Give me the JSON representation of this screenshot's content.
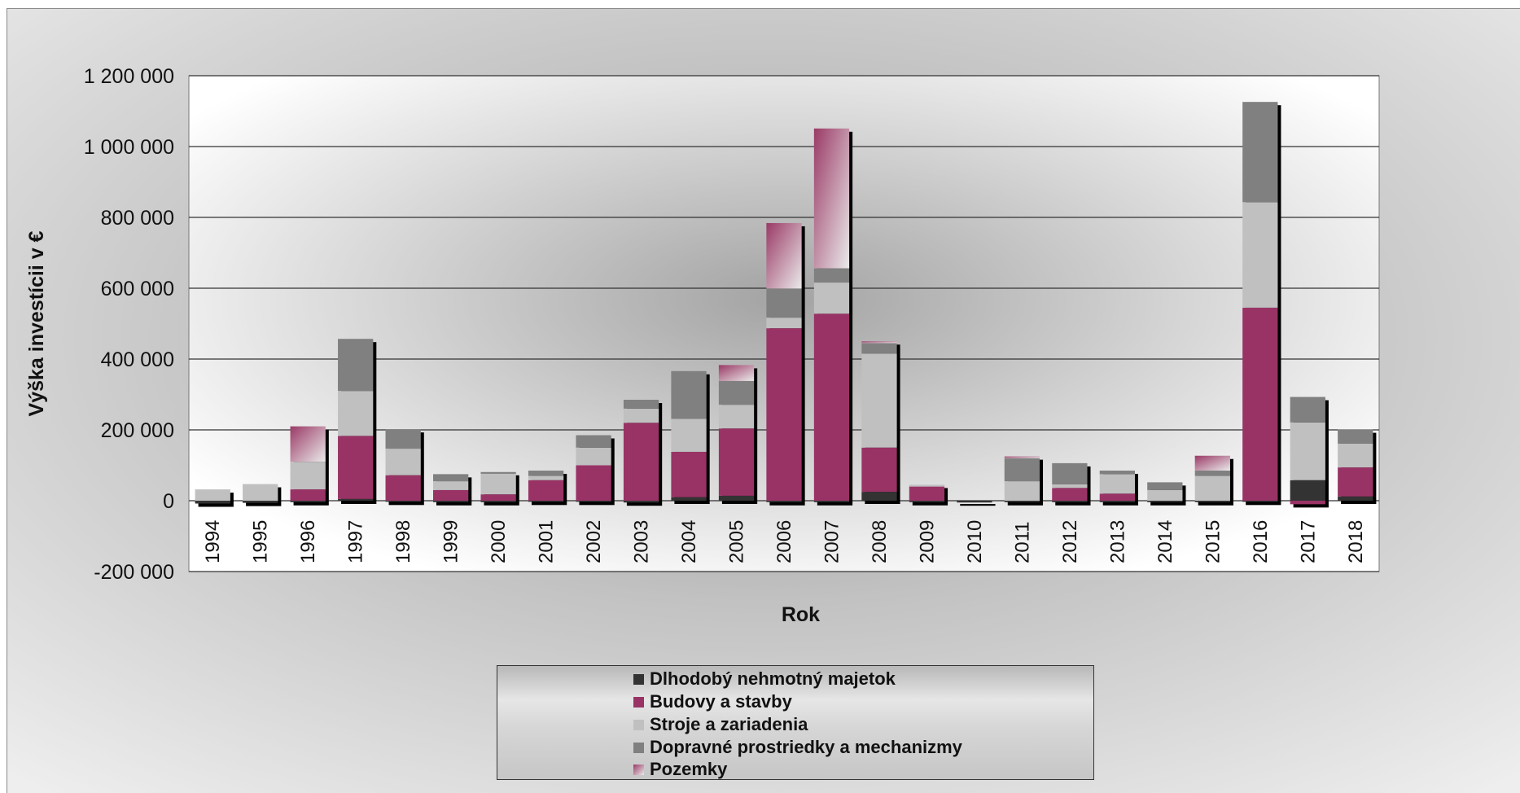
{
  "chart_data": {
    "type": "bar",
    "stacked": true,
    "title": "",
    "xlabel": "Rok",
    "ylabel": "Výška investícii v €",
    "ylim": [
      -200000,
      1200000
    ],
    "yticks": [
      -200000,
      0,
      200000,
      400000,
      600000,
      800000,
      1000000,
      1200000
    ],
    "ytick_labels": [
      "-200 000",
      "0",
      "200 000",
      "400 000",
      "600 000",
      "800 000",
      "1 000 000",
      "1 200 000"
    ],
    "grid": true,
    "legend_position": "bottom",
    "categories": [
      "1994",
      "1995",
      "1996",
      "1997",
      "1998",
      "1999",
      "2000",
      "2001",
      "2002",
      "2003",
      "2004",
      "2005",
      "2006",
      "2007",
      "2008",
      "2009",
      "2010",
      "2011",
      "2012",
      "2013",
      "2014",
      "2015",
      "2016",
      "2017",
      "2018"
    ],
    "series": [
      {
        "name": "Dlhodobý nehmotný majetok",
        "color": "#333333",
        "values": [
          -8000,
          -6000,
          -4000,
          5000,
          -3000,
          -4000,
          -4000,
          -3000,
          -3000,
          -5000,
          10000,
          14000,
          -4000,
          -4000,
          25000,
          -4000,
          -5000,
          -4000,
          -4000,
          -4000,
          -4000,
          -4000,
          -3000,
          58000,
          12000
        ]
      },
      {
        "name": "Budovy a stavby",
        "color": "#993366",
        "values": [
          0,
          0,
          32000,
          178000,
          72000,
          30000,
          18000,
          58000,
          100000,
          220000,
          128000,
          190000,
          487000,
          528000,
          125000,
          40000,
          0,
          0,
          36000,
          20000,
          0,
          0,
          545000,
          -10000,
          82000
        ]
      },
      {
        "name": "Stroje a zariadenia",
        "color": "#c0c0c0",
        "values": [
          32000,
          47000,
          78000,
          127000,
          75000,
          25000,
          58000,
          12000,
          50000,
          40000,
          93000,
          67000,
          30000,
          88000,
          265000,
          5000,
          0,
          55000,
          10000,
          55000,
          30000,
          70000,
          298000,
          163000,
          67000
        ]
      },
      {
        "name": "Dopravné prostriedky a mechanizmy",
        "color": "#808080",
        "values": [
          0,
          0,
          0,
          147000,
          55000,
          20000,
          5000,
          15000,
          35000,
          25000,
          135000,
          67000,
          82000,
          40000,
          30000,
          0,
          0,
          65000,
          60000,
          10000,
          22000,
          15000,
          283000,
          72000,
          40000
        ]
      },
      {
        "name": "Pozemky",
        "color": "#b04a78",
        "values": [
          0,
          0,
          100000,
          0,
          0,
          0,
          0,
          0,
          0,
          0,
          0,
          45000,
          185000,
          395000,
          5000,
          0,
          0,
          5000,
          0,
          0,
          0,
          42000,
          0,
          0,
          0
        ]
      }
    ]
  }
}
